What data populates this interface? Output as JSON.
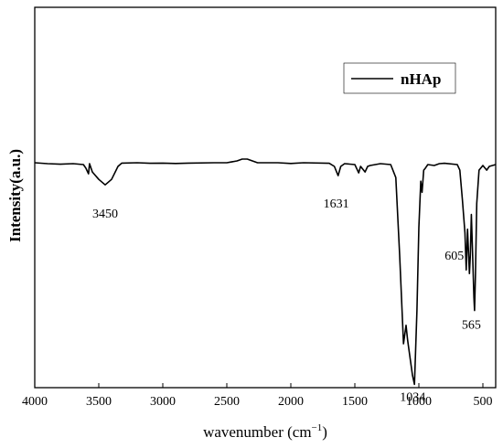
{
  "chart_data": {
    "type": "line",
    "xlabel": "wavenumber (cm",
    "xlabel_sup": "−1",
    "xlabel_close": ")",
    "ylabel": "Intensity(a.u.)",
    "xlim": [
      4000,
      400
    ],
    "x_reversed": true,
    "xticks": [
      4000,
      3500,
      3000,
      2500,
      2000,
      1500,
      1000,
      500
    ],
    "grid": false,
    "legend_position": "top-right",
    "series": [
      {
        "name": "nHAp",
        "color": "#000000",
        "points": [
          [
            4000,
            0
          ],
          [
            3900,
            0.005
          ],
          [
            3800,
            0.008
          ],
          [
            3700,
            0.005
          ],
          [
            3620,
            0.01
          ],
          [
            3600,
            0.03
          ],
          [
            3580,
            0.06
          ],
          [
            3572,
            0.005
          ],
          [
            3565,
            0.02
          ],
          [
            3550,
            0.05
          ],
          [
            3500,
            0.09
          ],
          [
            3450,
            0.12
          ],
          [
            3400,
            0.09
          ],
          [
            3350,
            0.02
          ],
          [
            3320,
            0.002
          ],
          [
            3200,
            0
          ],
          [
            3100,
            0.003
          ],
          [
            3000,
            0.002
          ],
          [
            2900,
            0.004
          ],
          [
            2800,
            0.002
          ],
          [
            2600,
            0
          ],
          [
            2500,
            0
          ],
          [
            2420,
            -0.01
          ],
          [
            2380,
            -0.02
          ],
          [
            2340,
            -0.02
          ],
          [
            2300,
            -0.01
          ],
          [
            2260,
            0
          ],
          [
            2100,
            0
          ],
          [
            2000,
            0.004
          ],
          [
            1900,
            0
          ],
          [
            1700,
            0.003
          ],
          [
            1660,
            0.02
          ],
          [
            1631,
            0.07
          ],
          [
            1610,
            0.02
          ],
          [
            1580,
            0.005
          ],
          [
            1500,
            0.01
          ],
          [
            1470,
            0.055
          ],
          [
            1455,
            0.02
          ],
          [
            1420,
            0.05
          ],
          [
            1400,
            0.02
          ],
          [
            1380,
            0.015
          ],
          [
            1300,
            0.005
          ],
          [
            1220,
            0.01
          ],
          [
            1180,
            0.08
          ],
          [
            1150,
            0.5
          ],
          [
            1120,
            0.98
          ],
          [
            1100,
            0.88
          ],
          [
            1088,
            0.96
          ],
          [
            1070,
            1.05
          ],
          [
            1050,
            1.15
          ],
          [
            1034,
            1.2
          ],
          [
            1015,
            0.8
          ],
          [
            1000,
            0.35
          ],
          [
            985,
            0.1
          ],
          [
            975,
            0.16
          ],
          [
            962,
            0.04
          ],
          [
            950,
            0.03
          ],
          [
            930,
            0.01
          ],
          [
            880,
            0.015
          ],
          [
            840,
            0.005
          ],
          [
            800,
            0.003
          ],
          [
            700,
            0.01
          ],
          [
            680,
            0.04
          ],
          [
            660,
            0.2
          ],
          [
            640,
            0.38
          ],
          [
            630,
            0.58
          ],
          [
            620,
            0.36
          ],
          [
            605,
            0.6
          ],
          [
            598,
            0.5
          ],
          [
            590,
            0.28
          ],
          [
            580,
            0.5
          ],
          [
            570,
            0.73
          ],
          [
            565,
            0.8
          ],
          [
            558,
            0.6
          ],
          [
            548,
            0.22
          ],
          [
            530,
            0.04
          ],
          [
            500,
            0.015
          ],
          [
            470,
            0.04
          ],
          [
            450,
            0.02
          ],
          [
            400,
            0.01
          ]
        ]
      }
    ],
    "annotations": [
      {
        "text": "3450",
        "x": 3450,
        "y": 0.12
      },
      {
        "text": "1631",
        "x": 1631,
        "y": 0.07
      },
      {
        "text": "1034",
        "x": 1034,
        "y": 1.2
      },
      {
        "text": "605",
        "x": 605,
        "y": 0.6
      },
      {
        "text": "565",
        "x": 565,
        "y": 0.8
      }
    ]
  }
}
